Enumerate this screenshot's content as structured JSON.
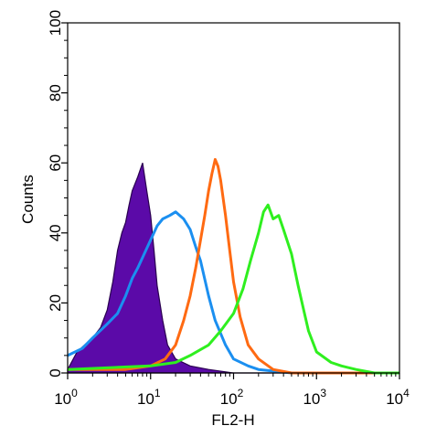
{
  "chart_data": {
    "type": "area",
    "title": "",
    "xlabel": "FL2-H",
    "ylabel": "Counts",
    "xscale": "log",
    "xlim": [
      1,
      10000
    ],
    "ylim": [
      0,
      100
    ],
    "x_ticks": [
      {
        "value": 1,
        "base": "10",
        "exp": "0"
      },
      {
        "value": 10,
        "base": "10",
        "exp": "1"
      },
      {
        "value": 100,
        "base": "10",
        "exp": "2"
      },
      {
        "value": 1000,
        "base": "10",
        "exp": "3"
      },
      {
        "value": 10000,
        "base": "10",
        "exp": "4"
      }
    ],
    "y_ticks": [
      0,
      20,
      40,
      60,
      80,
      100
    ],
    "grid": false,
    "legend": "none",
    "series": [
      {
        "color": "#5b0aa8",
        "style": "filled",
        "points": [
          [
            1,
            1
          ],
          [
            1.3,
            6
          ],
          [
            1.6,
            8
          ],
          [
            2,
            10
          ],
          [
            2.5,
            13
          ],
          [
            3,
            18
          ],
          [
            3.5,
            26
          ],
          [
            4,
            35
          ],
          [
            4.5,
            40
          ],
          [
            5,
            43
          ],
          [
            5.5,
            48
          ],
          [
            6,
            52
          ],
          [
            7,
            56
          ],
          [
            8,
            60
          ],
          [
            9,
            52
          ],
          [
            10,
            45
          ],
          [
            11,
            35
          ],
          [
            12,
            25
          ],
          [
            14,
            15
          ],
          [
            16,
            8
          ],
          [
            20,
            4
          ],
          [
            30,
            2
          ],
          [
            50,
            1
          ],
          [
            100,
            0
          ],
          [
            10000,
            0
          ]
        ]
      },
      {
        "color": "#1b8ff0",
        "style": "line",
        "points": [
          [
            1,
            5
          ],
          [
            1.5,
            7
          ],
          [
            2,
            10
          ],
          [
            3,
            14
          ],
          [
            4,
            17
          ],
          [
            5,
            22
          ],
          [
            6,
            27
          ],
          [
            7,
            30
          ],
          [
            8,
            33
          ],
          [
            10,
            38
          ],
          [
            12,
            42
          ],
          [
            14,
            44
          ],
          [
            17,
            45
          ],
          [
            20,
            46
          ],
          [
            25,
            44
          ],
          [
            30,
            41
          ],
          [
            35,
            36
          ],
          [
            40,
            32
          ],
          [
            50,
            22
          ],
          [
            60,
            15
          ],
          [
            80,
            8
          ],
          [
            100,
            4
          ],
          [
            150,
            2
          ],
          [
            200,
            1
          ],
          [
            500,
            0
          ],
          [
            10000,
            0
          ]
        ]
      },
      {
        "color": "#ff6a12",
        "style": "line",
        "points": [
          [
            1,
            1
          ],
          [
            5,
            1
          ],
          [
            10,
            2
          ],
          [
            15,
            4
          ],
          [
            20,
            8
          ],
          [
            25,
            15
          ],
          [
            30,
            22
          ],
          [
            35,
            30
          ],
          [
            40,
            38
          ],
          [
            45,
            45
          ],
          [
            50,
            52
          ],
          [
            55,
            57
          ],
          [
            60,
            61
          ],
          [
            65,
            59
          ],
          [
            70,
            55
          ],
          [
            80,
            45
          ],
          [
            90,
            35
          ],
          [
            100,
            26
          ],
          [
            120,
            16
          ],
          [
            150,
            8
          ],
          [
            200,
            4
          ],
          [
            300,
            1
          ],
          [
            500,
            0
          ],
          [
            10000,
            0
          ]
        ]
      },
      {
        "color": "#2fef1f",
        "style": "line",
        "points": [
          [
            1,
            1
          ],
          [
            10,
            2
          ],
          [
            20,
            3
          ],
          [
            30,
            5
          ],
          [
            50,
            8
          ],
          [
            70,
            12
          ],
          [
            100,
            17
          ],
          [
            130,
            24
          ],
          [
            160,
            32
          ],
          [
            200,
            40
          ],
          [
            230,
            46
          ],
          [
            260,
            48
          ],
          [
            300,
            44
          ],
          [
            350,
            45
          ],
          [
            400,
            41
          ],
          [
            500,
            34
          ],
          [
            600,
            25
          ],
          [
            700,
            18
          ],
          [
            800,
            12
          ],
          [
            1000,
            6
          ],
          [
            1500,
            3
          ],
          [
            2000,
            2
          ],
          [
            3000,
            1
          ],
          [
            5000,
            0
          ],
          [
            10000,
            0
          ]
        ]
      }
    ]
  }
}
